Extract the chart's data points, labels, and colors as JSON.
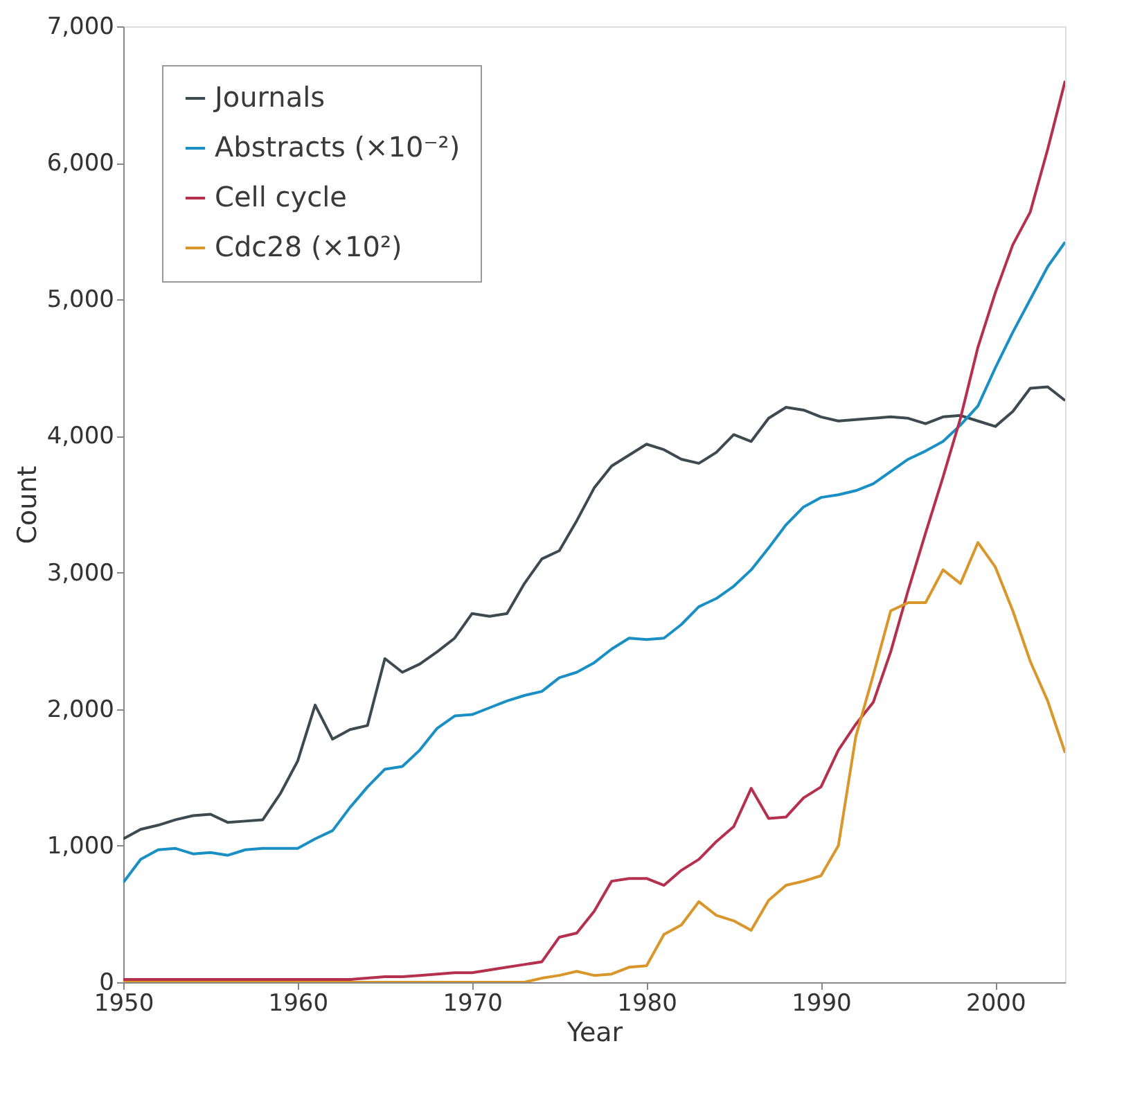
{
  "chart_data": {
    "type": "line",
    "xlabel": "Year",
    "ylabel": "Count",
    "x": [
      1950,
      1951,
      1952,
      1953,
      1954,
      1955,
      1956,
      1957,
      1958,
      1959,
      1960,
      1961,
      1962,
      1963,
      1964,
      1965,
      1966,
      1967,
      1968,
      1969,
      1970,
      1971,
      1972,
      1973,
      1974,
      1975,
      1976,
      1977,
      1978,
      1979,
      1980,
      1981,
      1982,
      1983,
      1984,
      1985,
      1986,
      1987,
      1988,
      1989,
      1990,
      1991,
      1992,
      1993,
      1994,
      1995,
      1996,
      1997,
      1998,
      1999,
      2000,
      2001,
      2002,
      2003,
      2004
    ],
    "series": [
      {
        "name": "Journals",
        "color": "#3d4a50",
        "values": [
          1050,
          1120,
          1150,
          1190,
          1220,
          1230,
          1170,
          1180,
          1190,
          1380,
          1620,
          2030,
          1780,
          1850,
          1880,
          2370,
          2270,
          2330,
          2420,
          2520,
          2700,
          2680,
          2700,
          2920,
          3100,
          3160,
          3380,
          3620,
          3780,
          3860,
          3940,
          3900,
          3830,
          3800,
          3880,
          4010,
          3960,
          4130,
          4210,
          4190,
          4140,
          4110,
          4120,
          4130,
          4140,
          4130,
          4090,
          4140,
          4150,
          4110,
          4070,
          4180,
          4350,
          4360,
          4260
        ]
      },
      {
        "name": "Abstracts (×10⁻²)",
        "color": "#1a8fc4",
        "values": [
          730,
          900,
          970,
          980,
          940,
          950,
          930,
          970,
          980,
          980,
          980,
          1050,
          1110,
          1280,
          1430,
          1560,
          1580,
          1700,
          1860,
          1950,
          1960,
          2010,
          2060,
          2100,
          2130,
          2230,
          2270,
          2340,
          2440,
          2520,
          2510,
          2520,
          2620,
          2750,
          2810,
          2900,
          3020,
          3180,
          3350,
          3480,
          3550,
          3570,
          3600,
          3650,
          3740,
          3830,
          3890,
          3960,
          4080,
          4220,
          4500,
          4760,
          5000,
          5240,
          5420
        ]
      },
      {
        "name": "Cell cycle",
        "color": "#b5304f",
        "values": [
          20,
          20,
          20,
          20,
          20,
          20,
          20,
          20,
          20,
          20,
          20,
          20,
          20,
          20,
          30,
          40,
          40,
          50,
          60,
          70,
          70,
          90,
          110,
          130,
          150,
          330,
          360,
          520,
          740,
          760,
          760,
          710,
          820,
          900,
          1030,
          1140,
          1420,
          1200,
          1210,
          1350,
          1430,
          1700,
          1890,
          2050,
          2420,
          2870,
          3290,
          3700,
          4130,
          4650,
          5050,
          5400,
          5640,
          6100,
          6600
        ]
      },
      {
        "name": "Cdc28  (×10²)",
        "color": "#d9962a",
        "values": [
          0,
          0,
          0,
          0,
          0,
          0,
          0,
          0,
          0,
          0,
          0,
          0,
          0,
          0,
          0,
          0,
          0,
          0,
          0,
          0,
          0,
          0,
          0,
          0,
          30,
          50,
          80,
          50,
          60,
          110,
          120,
          350,
          420,
          590,
          490,
          450,
          380,
          600,
          710,
          740,
          780,
          1000,
          1800,
          2250,
          2720,
          2780,
          2780,
          3020,
          2920,
          3220,
          3040,
          2720,
          2350,
          2060,
          1680
        ]
      }
    ],
    "xlim": [
      1950,
      2004
    ],
    "ylim": [
      0,
      7000
    ],
    "xticks": [
      1950,
      1960,
      1970,
      1980,
      1990,
      2000
    ],
    "yticks": [
      {
        "value": 0,
        "label": "0"
      },
      {
        "value": 1000,
        "label": "1,000"
      },
      {
        "value": 2000,
        "label": "2,000"
      },
      {
        "value": 3000,
        "label": "3,000"
      },
      {
        "value": 4000,
        "label": "4,000"
      },
      {
        "value": 5000,
        "label": "5,000"
      },
      {
        "value": 6000,
        "label": "6,000"
      },
      {
        "value": 7000,
        "label": "7,000"
      }
    ],
    "legend": "top left",
    "grid": false,
    "marker": "none",
    "line_style": "solid"
  }
}
